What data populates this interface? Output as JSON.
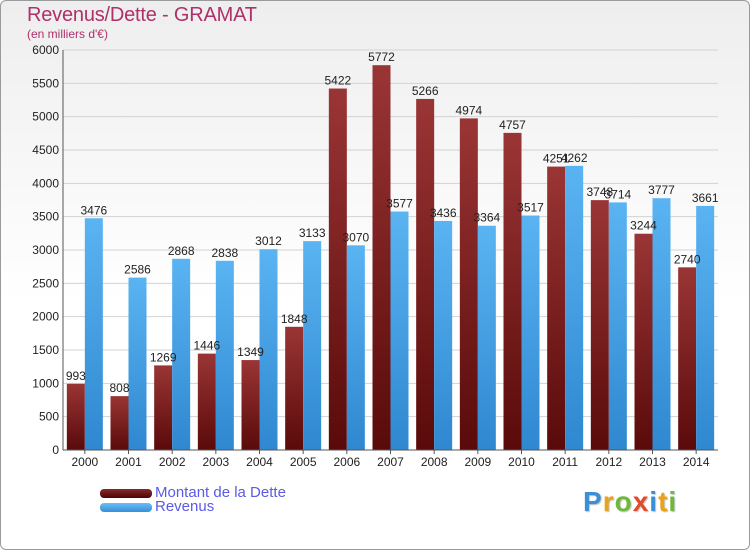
{
  "header": {
    "title": "Revenus/Dette - GRAMAT",
    "subtitle": "(en milliers d'€)"
  },
  "legend": [
    {
      "label": "Montant de la Dette",
      "color": "#6e1a1a"
    },
    {
      "label": "Revenus",
      "color": "#4aa3e8"
    }
  ],
  "logo": {
    "letters": [
      "P",
      "r",
      "o",
      "x",
      "i",
      "t",
      "i"
    ],
    "colors": [
      "#3a8fd6",
      "#e8a21c",
      "#6fb83c",
      "#e34a2a",
      "#3a8fd6",
      "#e8a21c",
      "#6fb83c"
    ]
  },
  "chart_data": {
    "type": "bar",
    "title": "Revenus/Dette - GRAMAT",
    "subtitle": "(en milliers d'€)",
    "categories": [
      "2000",
      "2001",
      "2002",
      "2003",
      "2004",
      "2005",
      "2006",
      "2007",
      "2008",
      "2009",
      "2010",
      "2011",
      "2012",
      "2013",
      "2014"
    ],
    "series": [
      {
        "name": "Montant de la Dette",
        "color": "#7a2222",
        "values": [
          993,
          808,
          1269,
          1446,
          1349,
          1848,
          5422,
          5772,
          5266,
          4974,
          4757,
          4251,
          3748,
          3244,
          2740
        ],
        "labels": [
          "993",
          "808",
          "1269",
          "1446",
          "1349",
          "1848",
          "5422",
          "5772",
          "5266",
          "4974",
          "4757",
          "4251",
          "3748",
          "3244",
          "2740"
        ]
      },
      {
        "name": "Revenus",
        "color": "#4aa3e8",
        "values": [
          3476,
          2586,
          2868,
          2838,
          3012,
          3133,
          3070,
          3577,
          3436,
          3364,
          3517,
          4262,
          3714,
          3777,
          3661
        ],
        "labels": [
          "3476",
          "2586",
          "2868",
          "2838",
          "3012",
          "3133",
          "3070",
          "3577",
          "3436",
          "3364",
          "3517",
          "4262",
          "3714",
          "3777",
          "3661"
        ]
      }
    ],
    "ylim": [
      0,
      6000
    ],
    "yticks": [
      0,
      500,
      1000,
      1500,
      2000,
      2500,
      3000,
      3500,
      4000,
      4500,
      5000,
      5500,
      6000
    ],
    "grid": true,
    "legend_position": "bottom-left"
  }
}
